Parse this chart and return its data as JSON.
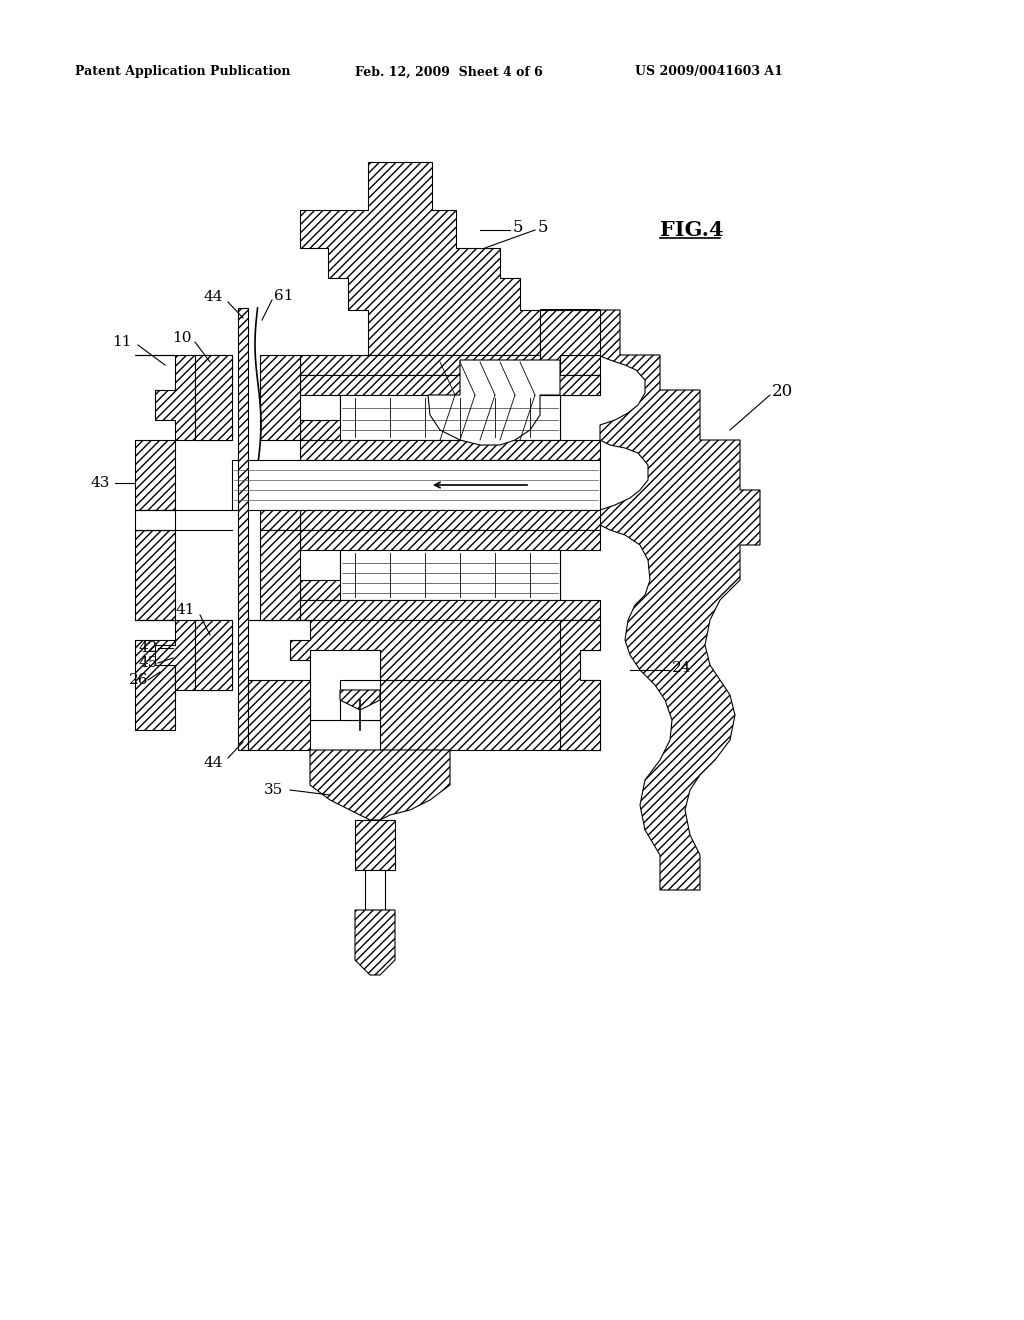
{
  "header_left": "Patent Application Publication",
  "header_mid": "Feb. 12, 2009  Sheet 4 of 6",
  "header_right": "US 2009/0041603 A1",
  "fig_label": "FIG.4",
  "background": "#ffffff",
  "line_color": "#000000"
}
